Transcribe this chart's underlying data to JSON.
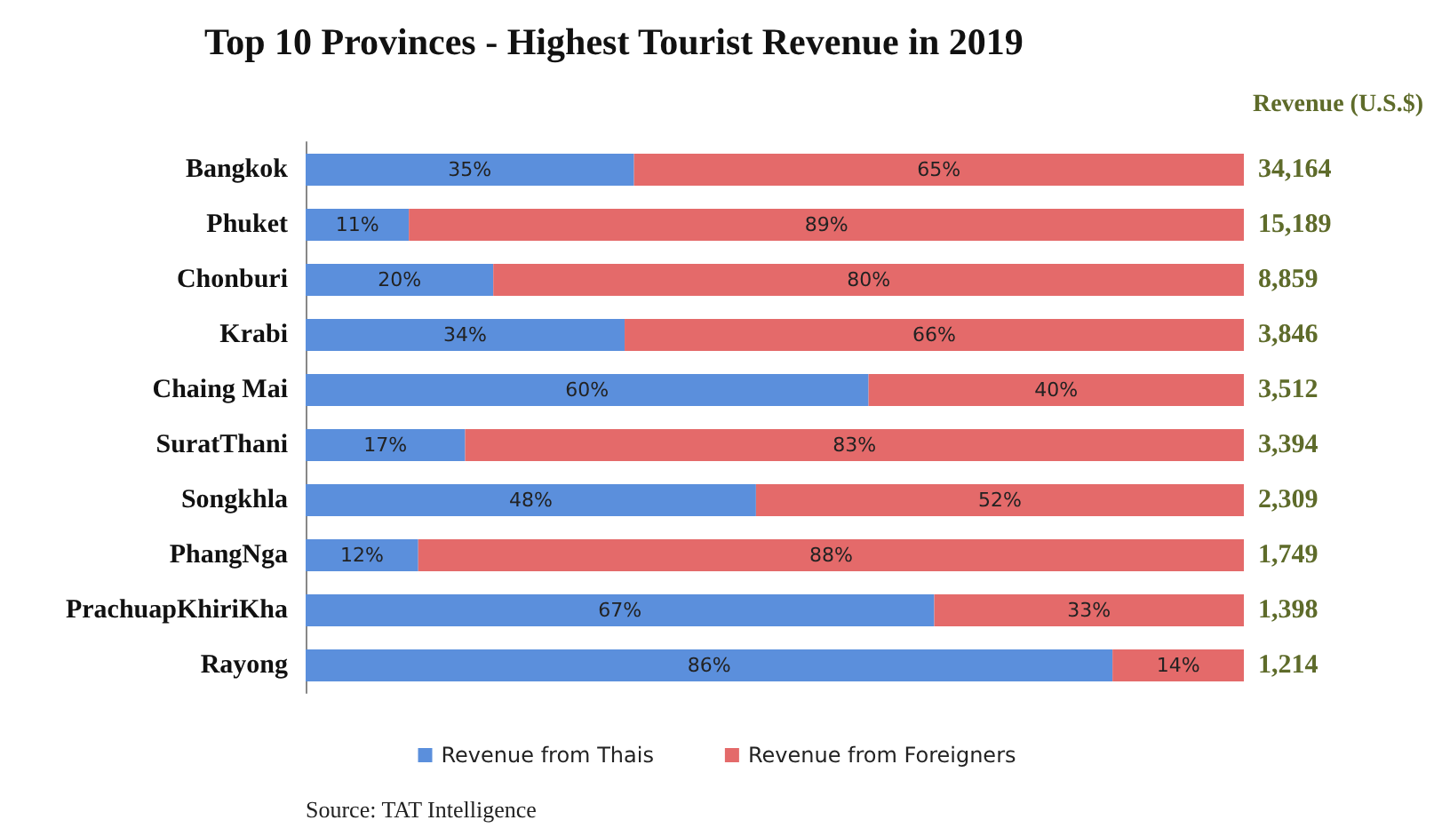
{
  "chart_data": {
    "type": "bar",
    "title": "Top 10 Provinces - Highest Tourist Revenue in 2019",
    "orientation": "horizontal",
    "stacked": true,
    "legend": "bottom",
    "categories": [
      "Bangkok",
      "Phuket",
      "Chonburi",
      "Krabi",
      "Chaing Mai",
      "SuratThani",
      "Songkhla",
      "PhangNga",
      "PrachuapKhiriKha",
      "Rayong"
    ],
    "series": [
      {
        "name": "Revenue from Thais",
        "color": "#5b8fdc",
        "values": [
          35,
          11,
          20,
          34,
          60,
          17,
          48,
          12,
          67,
          86
        ],
        "value_labels": [
          "35%",
          "11%",
          "20%",
          "34%",
          "60%",
          "17%",
          "48%",
          "12%",
          "67%",
          "86%"
        ]
      },
      {
        "name": "Revenue from Foreigners",
        "color": "#e46a6a",
        "values": [
          65,
          89,
          80,
          66,
          40,
          83,
          52,
          88,
          33,
          14
        ],
        "value_labels": [
          "65%",
          "89%",
          "80%",
          "66%",
          "40%",
          "83%",
          "52%",
          "88%",
          "33%",
          "14%"
        ]
      }
    ],
    "y2label": "Revenue (U.S.$)",
    "annotations": [
      "34,164",
      "15,189",
      "8,859",
      "3,846",
      "3,512",
      "3,394",
      "2,309",
      "1,749",
      "1,398",
      "1,214",
      "Source: TAT Intelligence"
    ]
  }
}
